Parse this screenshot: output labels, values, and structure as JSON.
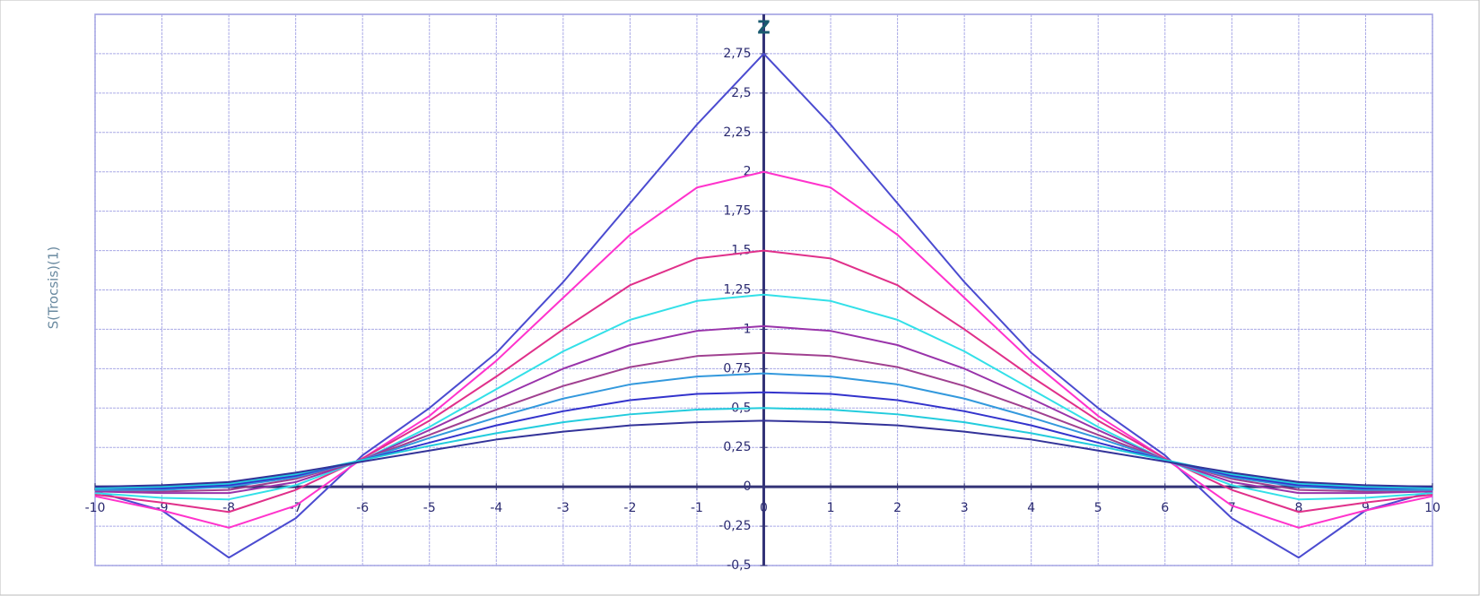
{
  "chart_data": {
    "type": "line",
    "title": "Z",
    "y_label": "S(Trocsis)(1)",
    "x": [
      -10,
      -9,
      -8,
      -7,
      -6,
      -5,
      -4,
      -3,
      -2,
      -1,
      0,
      1,
      2,
      3,
      4,
      5,
      6,
      7,
      8,
      9,
      10
    ],
    "xlim": [
      -10,
      10
    ],
    "ylim": [
      -0.5,
      3
    ],
    "xticks": [
      -10,
      -9,
      -8,
      -7,
      -6,
      -5,
      -4,
      -3,
      -2,
      -1,
      0,
      1,
      2,
      3,
      4,
      5,
      6,
      7,
      8,
      9,
      10
    ],
    "yticks": [
      {
        "value": -0.5,
        "label": "-0,5"
      },
      {
        "value": -0.25,
        "label": "-0,25"
      },
      0,
      {
        "value": 0.25,
        "label": "0,25"
      },
      {
        "value": 0.5,
        "label": "0,5"
      },
      {
        "value": 0.75,
        "label": "0,75"
      },
      1,
      {
        "value": 1.25,
        "label": "1,25"
      },
      {
        "value": 1.5,
        "label": "1,5"
      },
      {
        "value": 1.75,
        "label": "1,75"
      },
      2,
      {
        "value": 2.25,
        "label": "2,25"
      },
      {
        "value": 2.5,
        "label": "2,5"
      },
      {
        "value": 2.75,
        "label": "2,75"
      }
    ],
    "grid": true,
    "series": [
      {
        "color": "#4b4bd0",
        "values": [
          -0.03,
          -0.15,
          -0.45,
          -0.2,
          0.2,
          0.5,
          0.85,
          1.3,
          1.8,
          2.3,
          2.75,
          2.3,
          1.8,
          1.3,
          0.85,
          0.5,
          0.2,
          -0.2,
          -0.45,
          -0.15,
          -0.03
        ]
      },
      {
        "color": "#ff33cc",
        "values": [
          -0.06,
          -0.15,
          -0.26,
          -0.12,
          0.18,
          0.45,
          0.8,
          1.2,
          1.6,
          1.9,
          2.0,
          1.9,
          1.6,
          1.2,
          0.8,
          0.45,
          0.18,
          -0.12,
          -0.26,
          -0.15,
          -0.06
        ]
      },
      {
        "color": "#e0308a",
        "values": [
          -0.05,
          -0.1,
          -0.16,
          -0.02,
          0.18,
          0.42,
          0.7,
          1.0,
          1.28,
          1.45,
          1.5,
          1.45,
          1.28,
          1.0,
          0.7,
          0.42,
          0.18,
          -0.02,
          -0.16,
          -0.1,
          -0.05
        ]
      },
      {
        "color": "#33e0e8",
        "values": [
          -0.04,
          -0.07,
          -0.08,
          0.01,
          0.17,
          0.38,
          0.62,
          0.86,
          1.06,
          1.18,
          1.22,
          1.18,
          1.06,
          0.86,
          0.62,
          0.38,
          0.17,
          0.01,
          -0.08,
          -0.07,
          -0.04
        ]
      },
      {
        "color": "#9933aa",
        "values": [
          -0.03,
          -0.04,
          -0.04,
          0.03,
          0.17,
          0.36,
          0.56,
          0.75,
          0.9,
          0.99,
          1.02,
          0.99,
          0.9,
          0.75,
          0.56,
          0.36,
          0.17,
          0.03,
          -0.04,
          -0.04,
          -0.03
        ]
      },
      {
        "color": "#a04090",
        "values": [
          -0.02,
          -0.03,
          -0.02,
          0.05,
          0.17,
          0.33,
          0.49,
          0.64,
          0.76,
          0.83,
          0.85,
          0.83,
          0.76,
          0.64,
          0.49,
          0.33,
          0.17,
          0.05,
          -0.02,
          -0.03,
          -0.02
        ]
      },
      {
        "color": "#3399dd",
        "values": [
          -0.02,
          -0.02,
          0,
          0.06,
          0.17,
          0.31,
          0.44,
          0.56,
          0.65,
          0.7,
          0.72,
          0.7,
          0.65,
          0.56,
          0.44,
          0.31,
          0.17,
          0.06,
          0,
          -0.02,
          -0.02
        ]
      },
      {
        "color": "#3333cc",
        "values": [
          -0.01,
          -0.01,
          0.01,
          0.07,
          0.17,
          0.28,
          0.39,
          0.48,
          0.55,
          0.59,
          0.6,
          0.59,
          0.55,
          0.48,
          0.39,
          0.28,
          0.17,
          0.07,
          0.01,
          -0.01,
          -0.01
        ]
      },
      {
        "color": "#22ccdd",
        "values": [
          -0.01,
          0,
          0.02,
          0.08,
          0.17,
          0.26,
          0.34,
          0.41,
          0.46,
          0.49,
          0.5,
          0.49,
          0.46,
          0.41,
          0.34,
          0.26,
          0.17,
          0.08,
          0.02,
          0,
          -0.01
        ]
      },
      {
        "color": "#333399",
        "values": [
          0,
          0.01,
          0.03,
          0.09,
          0.16,
          0.23,
          0.3,
          0.35,
          0.39,
          0.41,
          0.42,
          0.41,
          0.39,
          0.35,
          0.3,
          0.23,
          0.16,
          0.09,
          0.03,
          0.01,
          0
        ]
      }
    ]
  }
}
